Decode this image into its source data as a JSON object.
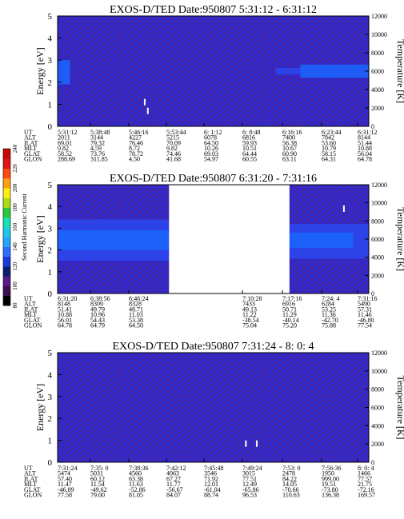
{
  "colors": {
    "background": "#2a2ad6",
    "noise": "#8a1a2a",
    "band_strong": "#1a66ff",
    "band_mid": "#2a48ee",
    "colorbar": [
      "#000000",
      "#3c0f50",
      "#5a1a8a",
      "#0c1f6e",
      "#1a3adc",
      "#2e6eff",
      "#28a4ff",
      "#1ec8e6",
      "#1ae0b4",
      "#2ec83c",
      "#aade1a",
      "#ffee14",
      "#ffa014",
      "#ff4a14",
      "#e01414",
      "#c80a0a"
    ]
  },
  "colorbar": {
    "label": "Second Harmonic Current",
    "ticks": [
      "240",
      "220",
      "200",
      "180",
      "160",
      "140",
      "120",
      "100",
      "80"
    ]
  },
  "row_labels": [
    "UT",
    "ALT",
    "ILAT",
    "MLT",
    "GLAT",
    "GLON"
  ],
  "chart_data": [
    {
      "type": "heatmap",
      "title": "EXOS-D/TED   Date:950807  5:31:12 - 6:31:12",
      "ylabel": "Energy [eV]",
      "ylim": [
        0,
        5
      ],
      "y_ticks": [
        "0",
        "1",
        "2",
        "3",
        "4",
        "5"
      ],
      "y2label": "Temperature [K]",
      "y2lim": [
        0,
        12000
      ],
      "y2_ticks": [
        "0",
        "2000",
        "4000",
        "6000",
        "8000",
        "10000",
        "12000"
      ],
      "gaps": [],
      "bands": [
        {
          "x0": 0.0,
          "x1": 0.04,
          "lo": 1.9,
          "hi": 3.0,
          "tone": "band_strong"
        },
        {
          "x0": 0.78,
          "x1": 1.0,
          "lo": 2.2,
          "hi": 2.8,
          "tone": "band_strong"
        },
        {
          "x0": 0.7,
          "x1": 0.78,
          "lo": 2.35,
          "hi": 2.65,
          "tone": "band_mid"
        }
      ],
      "specks": [
        {
          "x": 0.28,
          "y": 1.1
        },
        {
          "x": 0.29,
          "y": 0.7
        }
      ],
      "columns": [
        {
          "UT": "5:31:12",
          "ALT": "2011",
          "ILAT": "69.01",
          "MLT": "0.82",
          "GLAT": "58.52",
          "GLON": "288.69"
        },
        {
          "UT": "5:38:48",
          "ALT": "3144",
          "ILAT": "79.32",
          "MLT": "4.59",
          "GLAT": "73.76",
          "GLON": "311.85"
        },
        {
          "UT": "5:46:16",
          "ALT": "4227",
          "ILAT": "76.46",
          "MLT": "8.72",
          "GLAT": "78.72",
          "GLON": "4.50"
        },
        {
          "UT": "5:53:44",
          "ALT": "5215",
          "ILAT": "70.09",
          "MLT": "9.82",
          "GLAT": "74.46",
          "GLON": "41.68"
        },
        {
          "UT": "6: 1:12",
          "ALT": "6078",
          "ILAT": "64.50",
          "MLT": "10.26",
          "GLAT": "69.03",
          "GLON": "54.97"
        },
        {
          "UT": "6: 8:48",
          "ALT": "6816",
          "ILAT": "59.93",
          "MLT": "10.51",
          "GLAT": "64.44",
          "GLON": "60.55"
        },
        {
          "UT": "6:16:16",
          "ALT": "7400",
          "ILAT": "56.38",
          "MLT": "10.67",
          "GLAT": "60.90",
          "GLON": "63.11"
        },
        {
          "UT": "6:23:44",
          "ALT": "7842",
          "ILAT": "53.60",
          "MLT": "10.79",
          "GLAT": "58.15",
          "GLON": "64.31"
        },
        {
          "UT": "6:31:12",
          "ALT": "8144",
          "ILAT": "51.44",
          "MLT": "10.88",
          "GLAT": "56.04",
          "GLON": "64.78"
        }
      ]
    },
    {
      "type": "heatmap",
      "title": "EXOS-D/TED   Date:950807  6:31:20 - 7:31:16",
      "ylabel": "Energy [eV]",
      "ylim": [
        0,
        5
      ],
      "y_ticks": [
        "0",
        "1",
        "2",
        "3",
        "4",
        "5"
      ],
      "y2label": "Temperature [K]",
      "y2lim": [
        0,
        12000
      ],
      "y2_ticks": [
        "0",
        "2000",
        "4000",
        "6000",
        "8000",
        "10000",
        "12000"
      ],
      "gaps": [
        {
          "x0": 0.358,
          "x1": 0.745
        }
      ],
      "bands": [
        {
          "x0": 0.0,
          "x1": 0.358,
          "lo": 1.5,
          "hi": 3.4,
          "tone": "band_mid"
        },
        {
          "x0": 0.0,
          "x1": 0.358,
          "lo": 2.0,
          "hi": 2.9,
          "tone": "band_strong"
        },
        {
          "x0": 0.745,
          "x1": 1.0,
          "lo": 1.6,
          "hi": 3.2,
          "tone": "band_mid"
        },
        {
          "x0": 0.745,
          "x1": 0.95,
          "lo": 2.1,
          "hi": 2.8,
          "tone": "band_strong"
        }
      ],
      "specks": [
        {
          "x": 0.92,
          "y": 3.9
        }
      ],
      "columns": [
        {
          "UT": "6:31:20",
          "ALT": "8148",
          "ILAT": "51.41",
          "MLT": "10.88",
          "GLAT": "56.01",
          "GLON": "64.78"
        },
        {
          "UT": "6:38:56",
          "ALT": "8309",
          "ILAT": "49.79",
          "MLT": "10.96",
          "GLAT": "54.43",
          "GLON": "64.79"
        },
        {
          "UT": "6:46:24",
          "ALT": "8328",
          "ILAT": "48.71",
          "MLT": "11.03",
          "GLAT": "53.38",
          "GLON": "64.50"
        },
        {
          "UT": "",
          "ALT": "",
          "ILAT": "",
          "MLT": "",
          "GLAT": "",
          "GLON": ""
        },
        {
          "UT": "",
          "ALT": "",
          "ILAT": "",
          "MLT": "",
          "GLAT": "",
          "GLON": ""
        },
        {
          "UT": "7:10:28",
          "ALT": "7433",
          "ILAT": "49.13",
          "MLT": "11.22",
          "GLAT": "-38.54",
          "GLON": "75.04"
        },
        {
          "UT": "7:17:16",
          "ALT": "6916",
          "ILAT": "50.71",
          "MLT": "11.29",
          "GLAT": "-40.14",
          "GLON": "75.20"
        },
        {
          "UT": "7:24: 4",
          "ALT": "6284",
          "ILAT": "53.25",
          "MLT": "11.36",
          "GLAT": "-42.70",
          "GLON": "75.88"
        },
        {
          "UT": "7:31:16",
          "ALT": "5490",
          "ILAT": "57.31",
          "MLT": "11.46",
          "GLAT": "-46.80",
          "GLON": "77.54"
        }
      ]
    },
    {
      "type": "heatmap",
      "title": "EXOS-D/TED   Date:950807  7:31:24 - 8: 0: 4",
      "ylabel": "Energy [eV]",
      "ylim": [
        0,
        5
      ],
      "y_ticks": [
        "0",
        "1",
        "2",
        "3",
        "4",
        "5"
      ],
      "y2label": "Temperature [K]",
      "y2lim": [
        0,
        12000
      ],
      "y2_ticks": [
        "0",
        "2000",
        "4000",
        "6000",
        "8000",
        "10000",
        "12000"
      ],
      "gaps": [],
      "bands": [],
      "specks": [
        {
          "x": 0.605,
          "y": 0.85
        },
        {
          "x": 0.64,
          "y": 0.85
        }
      ],
      "columns": [
        {
          "UT": "7:31:24",
          "ALT": "5474",
          "ILAT": "57.40",
          "MLT": "11.47",
          "GLAT": "-46.89",
          "GLON": "77.58"
        },
        {
          "UT": "7:35: 0",
          "ALT": "5031",
          "ILAT": "60.12",
          "MLT": "11.54",
          "GLAT": "-49.62",
          "GLON": "79.00"
        },
        {
          "UT": "7:38:36",
          "ALT": "4560",
          "ILAT": "63.38",
          "MLT": "11.63",
          "GLAT": "-52.86",
          "GLON": "81.05"
        },
        {
          "UT": "7:42:12",
          "ALT": "4063",
          "ILAT": "67.27",
          "MLT": "11.77",
          "GLAT": "-56.67",
          "GLON": "84.07"
        },
        {
          "UT": "7:45:48",
          "ALT": "3546",
          "ILAT": "71.92",
          "MLT": "12.01",
          "GLAT": "-61.04",
          "GLON": "88.74"
        },
        {
          "UT": "7:49:24",
          "ALT": "3015",
          "ILAT": "77.51",
          "MLT": "12.49",
          "GLAT": "-65.86",
          "GLON": "96.53"
        },
        {
          "UT": "7:53: 0",
          "ALT": "2478",
          "ILAT": "84.22",
          "MLT": "14.05",
          "GLAT": "-70.66",
          "GLON": "110.63"
        },
        {
          "UT": "7:56:36",
          "ALT": "1950",
          "ILAT": "999.00",
          "MLT": "19.51",
          "GLAT": "-73.80",
          "GLON": "136.38"
        },
        {
          "UT": "8: 0: 4",
          "ALT": "1466",
          "ILAT": "77.57",
          "MLT": "21.75",
          "GLAT": "-72.16",
          "GLON": "169.57"
        }
      ]
    }
  ]
}
